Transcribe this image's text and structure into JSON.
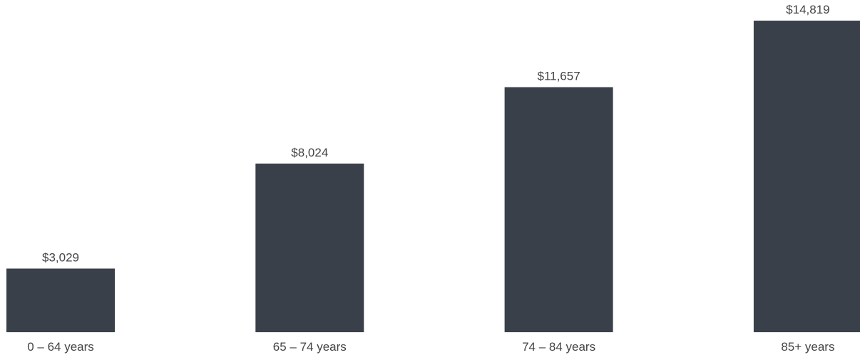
{
  "chart_data": {
    "type": "bar",
    "categories": [
      "0 – 64 years",
      "65 – 74 years",
      "74 – 84 years",
      "85+ years"
    ],
    "values": [
      3029,
      8024,
      11657,
      14819
    ],
    "value_labels": [
      "$3,029",
      "$8,024",
      "$11,657",
      "$14,819"
    ],
    "title": "",
    "xlabel": "",
    "ylabel": "",
    "ylim": [
      0,
      15700
    ],
    "grid": false,
    "legend": "none",
    "bar_color": "#3a4049",
    "label_color": "#444444"
  }
}
